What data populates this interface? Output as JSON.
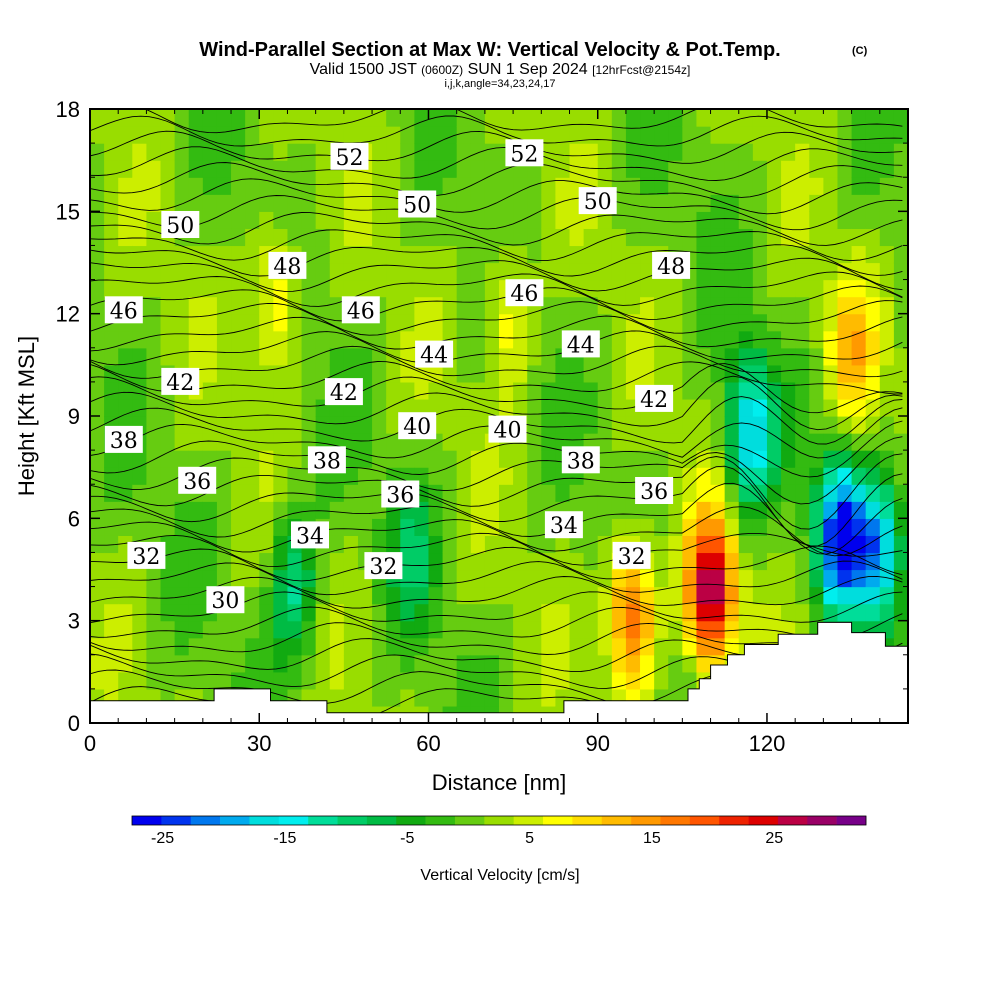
{
  "chart_data": {
    "type": "heatmap",
    "title": "Wind-Parallel Section at Max W: Vertical Velocity & Pot.Temp.",
    "title_mark": "(C)",
    "subtitle_a": "Valid 1500 JST",
    "subtitle_b": "(0600Z)",
    "subtitle_c": "SUN 1 Sep 2024",
    "subtitle_d": "[12hrFcst@2154z]",
    "subtitle_line2": "i,j,k,angle=34,23,24,17",
    "xlabel": "Distance [nm]",
    "ylabel": "Height [Kft MSL]",
    "xlim": [
      0,
      145
    ],
    "ylim": [
      0,
      18
    ],
    "x_ticks": [
      0,
      30,
      60,
      90,
      120
    ],
    "y_ticks": [
      0,
      3,
      6,
      9,
      12,
      15,
      18
    ],
    "x_tick_labels": [
      "0",
      "30",
      "60",
      "90",
      "120"
    ],
    "y_tick_labels": [
      "0",
      "3",
      "6",
      "9",
      "12",
      "15",
      "18"
    ],
    "colorbar": {
      "label": "Vertical Velocity [cm/s]",
      "tick_values": [
        -25,
        -15,
        -5,
        5,
        15,
        25
      ],
      "tick_labels": [
        "-25",
        "-15",
        "-5",
        "5",
        "15",
        "25"
      ],
      "range": [
        -27.5,
        32.5
      ],
      "step": 2.5,
      "colors": [
        "#0000ee",
        "#0033ee",
        "#0077ee",
        "#00aaee",
        "#00dddd",
        "#00eeee",
        "#00dd99",
        "#00cc66",
        "#00bb44",
        "#11aa11",
        "#33bb11",
        "#66cc11",
        "#99dd00",
        "#ccee00",
        "#ffff00",
        "#ffdd00",
        "#ffbb00",
        "#ff9900",
        "#ff7700",
        "#ff5500",
        "#ee2200",
        "#dd0000",
        "#bb0044",
        "#990066",
        "#770088"
      ]
    },
    "w_field_samples": [
      {
        "x": 33,
        "y": 12.5,
        "w": 12
      },
      {
        "x": 74,
        "y": 12,
        "w": 11
      },
      {
        "x": 135,
        "y": 11,
        "w": 13
      },
      {
        "x": 96,
        "y": 3.2,
        "w": 22
      },
      {
        "x": 110,
        "y": 3.8,
        "w": 30
      },
      {
        "x": 117,
        "y": 8.5,
        "w": -18
      },
      {
        "x": 133,
        "y": 5.5,
        "w": -25
      },
      {
        "x": 140,
        "y": 5,
        "w": -18
      },
      {
        "x": 36,
        "y": 4,
        "w": -11
      },
      {
        "x": 57,
        "y": 5,
        "w": -6
      }
    ],
    "theta_contour_labels": [
      {
        "text": "52",
        "x": 46,
        "y": 16.6
      },
      {
        "text": "52",
        "x": 77,
        "y": 16.7
      },
      {
        "text": "50",
        "x": 16,
        "y": 14.6
      },
      {
        "text": "50",
        "x": 58,
        "y": 15.2
      },
      {
        "text": "50",
        "x": 90,
        "y": 15.3
      },
      {
        "text": "48",
        "x": 35,
        "y": 13.4
      },
      {
        "text": "48",
        "x": 103,
        "y": 13.4
      },
      {
        "text": "46",
        "x": 6,
        "y": 12.1
      },
      {
        "text": "46",
        "x": 48,
        "y": 12.1
      },
      {
        "text": "46",
        "x": 77,
        "y": 12.6
      },
      {
        "text": "44",
        "x": 61,
        "y": 10.8
      },
      {
        "text": "44",
        "x": 87,
        "y": 11.1
      },
      {
        "text": "42",
        "x": 16,
        "y": 10.0
      },
      {
        "text": "42",
        "x": 45,
        "y": 9.7
      },
      {
        "text": "42",
        "x": 100,
        "y": 9.5
      },
      {
        "text": "40",
        "x": 58,
        "y": 8.7
      },
      {
        "text": "40",
        "x": 74,
        "y": 8.6
      },
      {
        "text": "38",
        "x": 6,
        "y": 8.3
      },
      {
        "text": "38",
        "x": 42,
        "y": 7.7
      },
      {
        "text": "38",
        "x": 87,
        "y": 7.7
      },
      {
        "text": "36",
        "x": 19,
        "y": 7.1
      },
      {
        "text": "36",
        "x": 55,
        "y": 6.7
      },
      {
        "text": "36",
        "x": 100,
        "y": 6.8
      },
      {
        "text": "34",
        "x": 39,
        "y": 5.5
      },
      {
        "text": "34",
        "x": 84,
        "y": 5.8
      },
      {
        "text": "32",
        "x": 10,
        "y": 4.9
      },
      {
        "text": "32",
        "x": 52,
        "y": 4.6
      },
      {
        "text": "32",
        "x": 96,
        "y": 4.9
      },
      {
        "text": "30",
        "x": 24,
        "y": 3.6
      }
    ]
  }
}
